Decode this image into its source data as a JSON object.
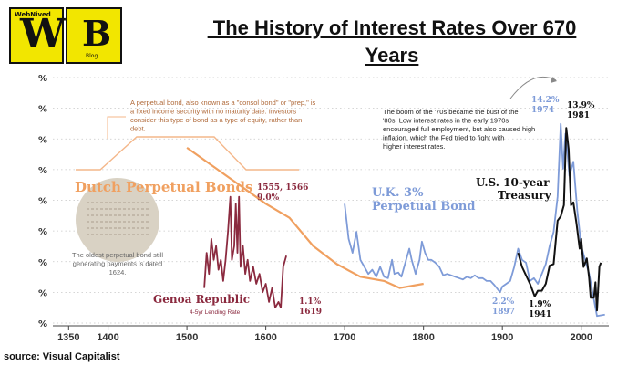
{
  "logo": {
    "top_text": "WebNived",
    "letter_w": "W",
    "letter_b": "B",
    "blog_text": "Blog"
  },
  "title_line1": " The History of Interest Rates Over 670",
  "title_line2": "Years",
  "source": "source:  Visual Capitalist",
  "colors": {
    "dutch": "#f0a060",
    "genoa": "#8b2a3f",
    "uk": "#7e9bd8",
    "us": "#111111",
    "annotation_line": "#f4b78a",
    "text_gray": "#666666"
  },
  "chart_data": {
    "type": "line",
    "xlim": [
      1330,
      2035
    ],
    "ylim": [
      0,
      17.5
    ],
    "x_ticks": [
      1350,
      1400,
      1500,
      1600,
      1700,
      1800,
      1900,
      2000
    ],
    "y_tick_label": "%",
    "y_tick_count": 9,
    "series": [
      {
        "name": "Dutch Perpetual Bonds",
        "key": "dutch",
        "points": [
          [
            1500,
            12.5
          ],
          [
            1550,
            10.5
          ],
          [
            1600,
            8.5
          ],
          [
            1630,
            7.5
          ],
          [
            1660,
            5.5
          ],
          [
            1690,
            4.2
          ],
          [
            1720,
            3.3
          ],
          [
            1750,
            3.0
          ],
          [
            1770,
            2.5
          ],
          [
            1800,
            2.8
          ]
        ]
      },
      {
        "name": "Genoa Republic",
        "key": "genoa",
        "points": [
          [
            1522,
            2.5
          ],
          [
            1525,
            5.0
          ],
          [
            1528,
            3.5
          ],
          [
            1531,
            6.0
          ],
          [
            1534,
            4.5
          ],
          [
            1537,
            5.5
          ],
          [
            1540,
            3.8
          ],
          [
            1543,
            4.5
          ],
          [
            1546,
            3.0
          ],
          [
            1549,
            4.5
          ],
          [
            1552,
            6.5
          ],
          [
            1555,
            9.0
          ],
          [
            1557,
            4.5
          ],
          [
            1560,
            5.5
          ],
          [
            1562,
            8.5
          ],
          [
            1564,
            5.0
          ],
          [
            1566,
            9.0
          ],
          [
            1568,
            4.0
          ],
          [
            1571,
            5.5
          ],
          [
            1574,
            3.5
          ],
          [
            1577,
            4.5
          ],
          [
            1580,
            3.0
          ],
          [
            1584,
            4.0
          ],
          [
            1588,
            2.8
          ],
          [
            1592,
            3.5
          ],
          [
            1596,
            2.2
          ],
          [
            1600,
            2.8
          ],
          [
            1604,
            1.5
          ],
          [
            1608,
            2.5
          ],
          [
            1612,
            1.1
          ],
          [
            1616,
            1.5
          ],
          [
            1619,
            1.1
          ],
          [
            1622,
            4.0
          ],
          [
            1626,
            4.8
          ]
        ]
      },
      {
        "name": "U.K. 3% Perpetual Bond",
        "key": "uk",
        "points": [
          [
            1700,
            8.5
          ],
          [
            1705,
            6.0
          ],
          [
            1710,
            5.0
          ],
          [
            1715,
            6.5
          ],
          [
            1720,
            4.5
          ],
          [
            1725,
            4.0
          ],
          [
            1730,
            3.5
          ],
          [
            1735,
            3.8
          ],
          [
            1740,
            3.3
          ],
          [
            1745,
            4.0
          ],
          [
            1750,
            3.3
          ],
          [
            1755,
            3.2
          ],
          [
            1760,
            4.5
          ],
          [
            1763,
            3.5
          ],
          [
            1768,
            3.6
          ],
          [
            1772,
            3.3
          ],
          [
            1778,
            4.5
          ],
          [
            1782,
            5.3
          ],
          [
            1785,
            4.5
          ],
          [
            1790,
            3.5
          ],
          [
            1795,
            4.5
          ],
          [
            1798,
            5.8
          ],
          [
            1802,
            5.0
          ],
          [
            1806,
            4.5
          ],
          [
            1810,
            4.5
          ],
          [
            1815,
            4.3
          ],
          [
            1820,
            4.0
          ],
          [
            1825,
            3.4
          ],
          [
            1830,
            3.5
          ],
          [
            1835,
            3.4
          ],
          [
            1840,
            3.3
          ],
          [
            1845,
            3.2
          ],
          [
            1850,
            3.1
          ],
          [
            1855,
            3.3
          ],
          [
            1860,
            3.2
          ],
          [
            1865,
            3.4
          ],
          [
            1870,
            3.2
          ],
          [
            1875,
            3.2
          ],
          [
            1880,
            3.0
          ],
          [
            1885,
            3.0
          ],
          [
            1890,
            2.7
          ],
          [
            1897,
            2.2
          ],
          [
            1900,
            2.6
          ],
          [
            1905,
            2.8
          ],
          [
            1910,
            3.0
          ],
          [
            1915,
            4.0
          ],
          [
            1920,
            5.3
          ],
          [
            1925,
            4.5
          ],
          [
            1930,
            4.3
          ],
          [
            1935,
            3.0
          ],
          [
            1940,
            3.2
          ],
          [
            1945,
            2.8
          ],
          [
            1950,
            3.5
          ],
          [
            1955,
            4.2
          ],
          [
            1960,
            5.5
          ],
          [
            1965,
            6.5
          ],
          [
            1970,
            9.0
          ],
          [
            1974,
            14.2
          ],
          [
            1977,
            11.0
          ],
          [
            1980,
            13.5
          ],
          [
            1982,
            12.5
          ],
          [
            1985,
            10.5
          ],
          [
            1990,
            11.5
          ],
          [
            1995,
            8.0
          ],
          [
            2000,
            5.5
          ],
          [
            2005,
            4.5
          ],
          [
            2010,
            3.5
          ],
          [
            2015,
            2.0
          ],
          [
            2020,
            0.5
          ],
          [
            2030,
            0.6
          ]
        ]
      },
      {
        "name": "U.S. 10-year Treasury",
        "key": "us",
        "points": [
          [
            1920,
            5.0
          ],
          [
            1925,
            4.0
          ],
          [
            1930,
            3.4
          ],
          [
            1935,
            2.8
          ],
          [
            1941,
            1.9
          ],
          [
            1945,
            2.3
          ],
          [
            1950,
            2.3
          ],
          [
            1955,
            2.8
          ],
          [
            1960,
            4.1
          ],
          [
            1965,
            4.2
          ],
          [
            1970,
            7.3
          ],
          [
            1974,
            7.6
          ],
          [
            1978,
            8.4
          ],
          [
            1981,
            13.9
          ],
          [
            1984,
            12.4
          ],
          [
            1987,
            8.4
          ],
          [
            1990,
            8.6
          ],
          [
            1994,
            7.1
          ],
          [
            1998,
            5.3
          ],
          [
            2000,
            6.0
          ],
          [
            2003,
            4.0
          ],
          [
            2007,
            4.6
          ],
          [
            2010,
            3.2
          ],
          [
            2012,
            1.8
          ],
          [
            2016,
            1.8
          ],
          [
            2018,
            2.9
          ],
          [
            2020,
            0.9
          ],
          [
            2023,
            4.0
          ],
          [
            2025,
            4.3
          ]
        ]
      }
    ],
    "annotations": {
      "perpetual_bond_note": "A perpetual bond, also known as a \"consol bond\" or \"prep,\" is a fixed income security with no maturity date. Investors consider this type of bond as a type of equity, rather than debt.",
      "seventies_note": "The boom of the '70s became the bust of the '80s. Low interest rates in the early 1970s encouraged full employment, but also caused high inflation, which the Fed tried to fight with higher interest rates.",
      "oldest_bond_note": "The oldest perpetual bond still generating payments is dated 1624.",
      "genoa_label": "Genoa Republic",
      "genoa_sublabel": "4-5yr Lending Rate",
      "dutch_label": "Dutch Perpetual Bonds",
      "uk_label_1": "U.K. 3%",
      "uk_label_2": "Perpetual Bond",
      "us_label_1": "U.S. 10-year",
      "us_label_2": "Treasury",
      "label_1555_a": "1555, 1566",
      "label_1555_b": "9.0%",
      "label_1619_a": "1.1%",
      "label_1619_b": "1619",
      "label_1897_a": "2.2%",
      "label_1897_b": "1897",
      "label_1941_a": "1.9%",
      "label_1941_b": "1941",
      "label_1974_a": "14.2%",
      "label_1974_b": "1974",
      "label_1981_a": "13.9%",
      "label_1981_b": "1981"
    }
  }
}
